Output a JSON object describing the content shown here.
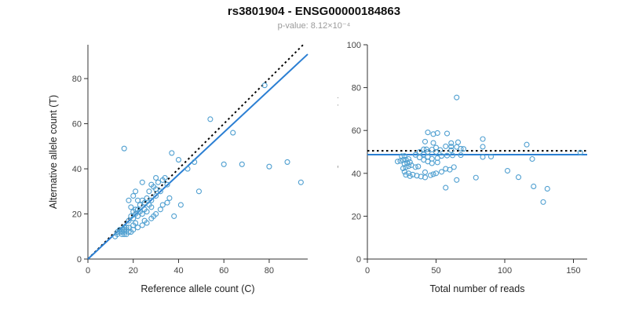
{
  "header": {
    "title": "rs3801904 - ENSG00000184863",
    "subtitle": "p-value: 8.12×10⁻⁴"
  },
  "colors": {
    "point": "#4f9fd0",
    "regression_line": "#2b7fd3",
    "dotted_line": "#000000",
    "axis": "#333333",
    "tick_label": "#444444",
    "subtitle": "#9a9a9a"
  },
  "chart_data": [
    {
      "type": "scatter",
      "name": "allele-counts-scatter",
      "xlabel": "Reference allele count (C)",
      "ylabel": "Alternative allele count (T)",
      "xlim": [
        0,
        97
      ],
      "ylim": [
        0,
        95
      ],
      "xticks": [
        0,
        20,
        40,
        60,
        80
      ],
      "yticks": [
        0,
        20,
        40,
        60,
        80
      ],
      "points": [
        [
          12,
          10
        ],
        [
          13,
          11
        ],
        [
          13,
          12
        ],
        [
          14,
          12
        ],
        [
          14,
          13
        ],
        [
          15,
          11
        ],
        [
          15,
          12
        ],
        [
          15,
          13
        ],
        [
          16,
          11
        ],
        [
          16,
          12
        ],
        [
          16,
          13
        ],
        [
          16,
          14
        ],
        [
          17,
          11
        ],
        [
          17,
          13
        ],
        [
          17,
          14
        ],
        [
          18,
          12
        ],
        [
          18,
          14
        ],
        [
          19,
          12
        ],
        [
          20,
          13
        ],
        [
          20,
          15
        ],
        [
          21,
          16
        ],
        [
          22,
          14
        ],
        [
          18,
          17
        ],
        [
          19,
          19
        ],
        [
          19,
          23
        ],
        [
          20,
          18
        ],
        [
          20,
          21
        ],
        [
          20,
          28
        ],
        [
          21,
          20
        ],
        [
          21,
          22
        ],
        [
          21,
          30
        ],
        [
          22,
          19
        ],
        [
          22,
          22
        ],
        [
          22,
          26
        ],
        [
          23,
          21
        ],
        [
          23,
          24
        ],
        [
          24,
          20
        ],
        [
          24,
          26
        ],
        [
          24,
          34
        ],
        [
          25,
          22
        ],
        [
          25,
          25
        ],
        [
          26,
          21
        ],
        [
          26,
          27
        ],
        [
          27,
          24
        ],
        [
          28,
          23
        ],
        [
          28,
          26
        ],
        [
          30,
          28
        ],
        [
          18,
          26
        ],
        [
          27,
          30
        ],
        [
          28,
          33
        ],
        [
          29,
          32
        ],
        [
          30,
          31
        ],
        [
          30,
          36
        ],
        [
          31,
          34
        ],
        [
          32,
          30
        ],
        [
          33,
          35
        ],
        [
          34,
          36
        ],
        [
          35,
          33
        ],
        [
          24,
          15
        ],
        [
          25,
          17
        ],
        [
          26,
          16
        ],
        [
          28,
          18
        ],
        [
          29,
          19
        ],
        [
          30,
          20
        ],
        [
          32,
          22
        ],
        [
          33,
          24
        ],
        [
          35,
          25
        ],
        [
          36,
          27
        ],
        [
          38,
          19
        ],
        [
          41,
          24
        ],
        [
          49,
          30
        ],
        [
          16,
          49
        ],
        [
          37,
          47
        ],
        [
          40,
          44
        ],
        [
          44,
          40
        ],
        [
          47,
          43
        ],
        [
          54,
          62
        ],
        [
          60,
          42
        ],
        [
          64,
          56
        ],
        [
          68,
          42
        ],
        [
          78,
          77
        ],
        [
          80,
          41
        ],
        [
          88,
          43
        ],
        [
          94,
          34
        ]
      ],
      "lines": [
        {
          "name": "identity-line",
          "style": "dotted",
          "color": "#000000",
          "x1": 0,
          "y1": 0,
          "x2": 95,
          "y2": 95
        },
        {
          "name": "regression-line",
          "style": "solid",
          "color": "#2b7fd3",
          "x1": 0,
          "y1": 0,
          "x2": 97,
          "y2": 90.8
        }
      ]
    },
    {
      "type": "scatter",
      "name": "percentage-vs-reads-scatter",
      "xlabel": "Total number of reads",
      "ylabel": "Percentage alternative (T)",
      "xlim": [
        0,
        160
      ],
      "ylim": [
        0,
        100
      ],
      "xticks": [
        0,
        50,
        100,
        150
      ],
      "yticks": [
        0,
        20,
        40,
        60,
        80,
        100
      ],
      "points": [
        [
          22,
          45.5
        ],
        [
          24,
          45.8
        ],
        [
          25,
          48.0
        ],
        [
          26,
          46.2
        ],
        [
          27,
          48.1
        ],
        [
          26,
          42.3
        ],
        [
          27,
          44.4
        ],
        [
          28,
          46.4
        ],
        [
          27,
          40.7
        ],
        [
          28,
          42.9
        ],
        [
          29,
          44.8
        ],
        [
          30,
          46.7
        ],
        [
          28,
          39.3
        ],
        [
          30,
          43.3
        ],
        [
          31,
          45.2
        ],
        [
          30,
          40.0
        ],
        [
          32,
          43.8
        ],
        [
          31,
          38.7
        ],
        [
          33,
          39.4
        ],
        [
          35,
          42.9
        ],
        [
          37,
          43.2
        ],
        [
          36,
          38.9
        ],
        [
          35,
          48.6
        ],
        [
          38,
          50.0
        ],
        [
          42,
          54.8
        ],
        [
          38,
          47.4
        ],
        [
          41,
          51.2
        ],
        [
          48,
          58.3
        ],
        [
          41,
          48.8
        ],
        [
          43,
          51.2
        ],
        [
          51,
          58.8
        ],
        [
          41,
          46.3
        ],
        [
          44,
          50.0
        ],
        [
          48,
          54.2
        ],
        [
          44,
          47.7
        ],
        [
          47,
          51.1
        ],
        [
          44,
          45.5
        ],
        [
          50,
          52.0
        ],
        [
          58,
          58.6
        ],
        [
          47,
          46.8
        ],
        [
          50,
          50.0
        ],
        [
          47,
          44.7
        ],
        [
          53,
          50.9
        ],
        [
          51,
          47.1
        ],
        [
          51,
          45.1
        ],
        [
          54,
          48.1
        ],
        [
          58,
          48.3
        ],
        [
          44,
          59.1
        ],
        [
          57,
          52.6
        ],
        [
          61,
          54.1
        ],
        [
          61,
          52.5
        ],
        [
          61,
          50.8
        ],
        [
          66,
          54.5
        ],
        [
          65,
          52.3
        ],
        [
          62,
          48.4
        ],
        [
          68,
          51.5
        ],
        [
          70,
          51.4
        ],
        [
          68,
          48.5
        ],
        [
          39,
          38.5
        ],
        [
          42,
          40.5
        ],
        [
          42,
          38.1
        ],
        [
          46,
          39.1
        ],
        [
          48,
          39.6
        ],
        [
          50,
          40.0
        ],
        [
          54,
          40.7
        ],
        [
          57,
          42.1
        ],
        [
          60,
          41.7
        ],
        [
          63,
          42.9
        ],
        [
          57,
          33.3
        ],
        [
          65,
          36.9
        ],
        [
          79,
          38.0
        ],
        [
          65,
          75.4
        ],
        [
          84,
          56.0
        ],
        [
          84,
          52.4
        ],
        [
          84,
          47.6
        ],
        [
          90,
          47.8
        ],
        [
          116,
          53.4
        ],
        [
          102,
          41.2
        ],
        [
          120,
          46.7
        ],
        [
          110,
          38.2
        ],
        [
          155,
          49.7
        ],
        [
          121,
          33.9
        ],
        [
          131,
          32.8
        ],
        [
          128,
          26.6
        ]
      ],
      "lines": [
        {
          "name": "expected-50pct-line",
          "style": "dotted",
          "color": "#000000",
          "x1": 0,
          "y1": 50.5,
          "x2": 160,
          "y2": 50.5
        },
        {
          "name": "mean-line",
          "style": "solid",
          "color": "#2b7fd3",
          "x1": 0,
          "y1": 48.7,
          "x2": 160,
          "y2": 48.7
        }
      ]
    }
  ]
}
